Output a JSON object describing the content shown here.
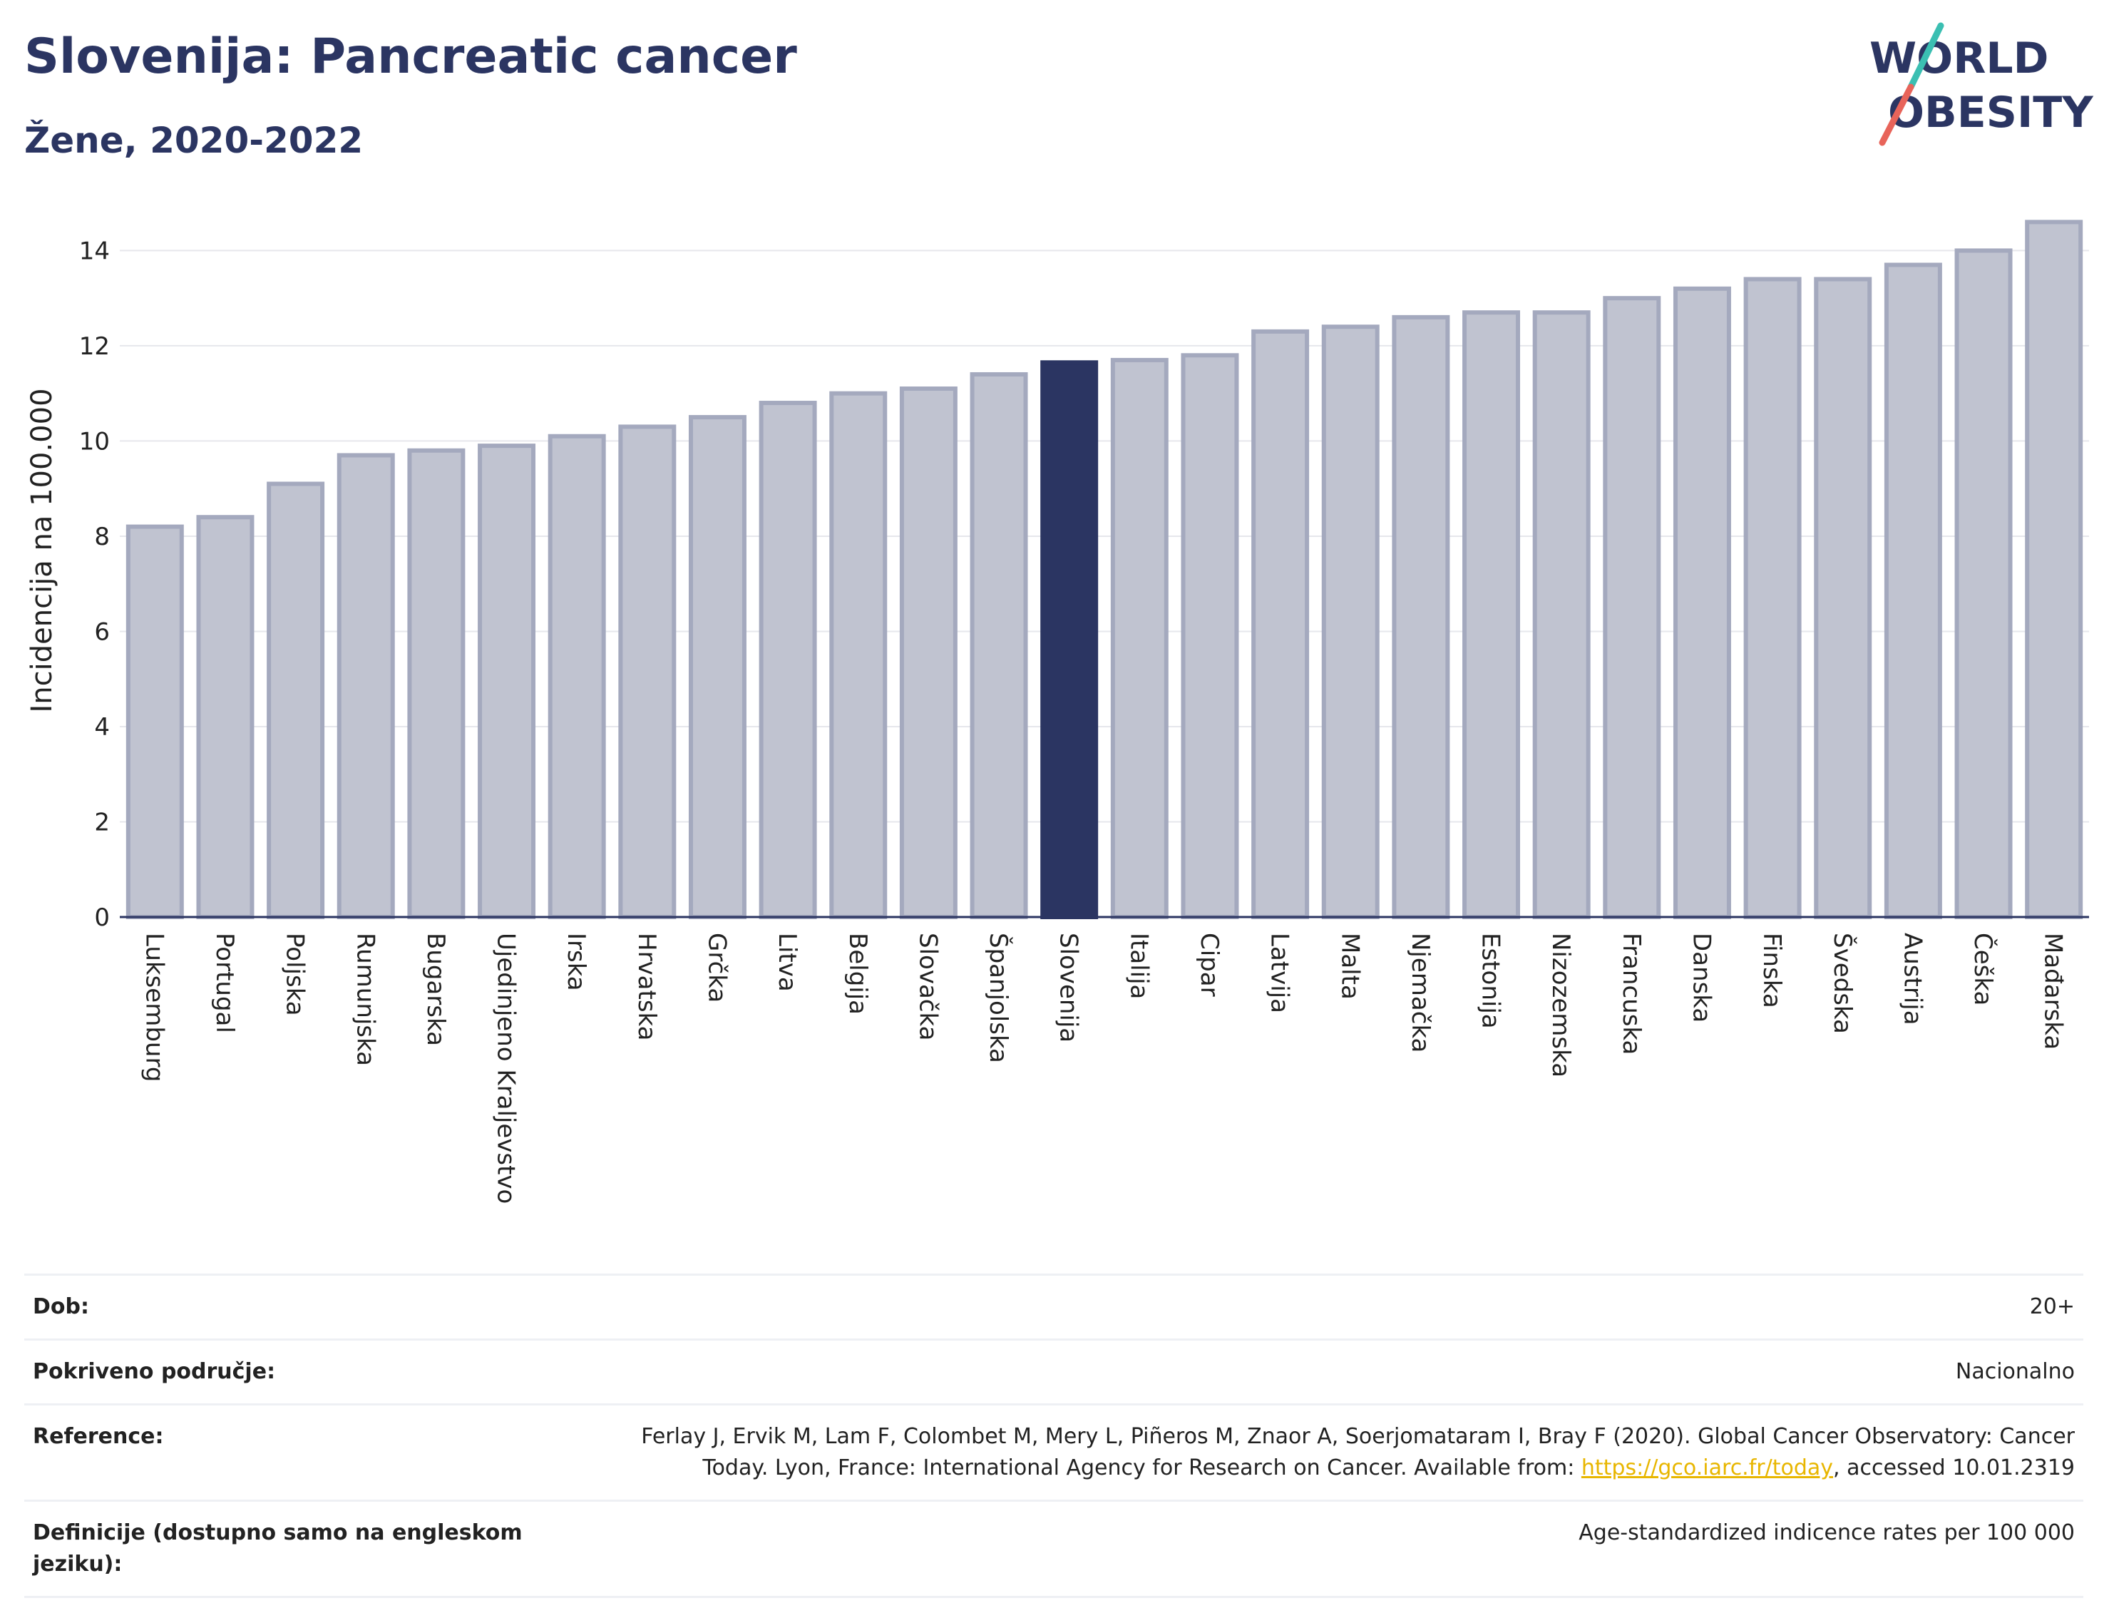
{
  "header": {
    "title": "Slovenija: Pancreatic cancer",
    "subtitle": "Žene, 2020-2022"
  },
  "logo": {
    "line1": "WORLD",
    "line2": "OBESITY",
    "colors": {
      "text": "#2b3562",
      "slash_top": "#3bbfb2",
      "slash_bottom": "#e8645a"
    }
  },
  "colors": {
    "bar": "#c0c3d0",
    "bar_border": "#a4a9be",
    "highlight": "#2b3562",
    "grid": "#e6e7ec",
    "axis": "#2b3562"
  },
  "chart_data": {
    "type": "bar",
    "title": "Slovenija: Pancreatic cancer",
    "subtitle": "Žene, 2020-2022",
    "xlabel": "",
    "ylabel": "Incidencija na 100.000",
    "ylim": [
      0,
      14.8
    ],
    "yticks": [
      0,
      2,
      4,
      6,
      8,
      10,
      12,
      14
    ],
    "grid": true,
    "highlight": "Slovenija",
    "categories": [
      "Luksemburg",
      "Portugal",
      "Poljska",
      "Rumunjska",
      "Bugarska",
      "Ujedinjeno Kraljevstvo",
      "Irska",
      "Hrvatska",
      "Grčka",
      "Litva",
      "Belgija",
      "Slovačka",
      "Španjolska",
      "Slovenija",
      "Italija",
      "Cipar",
      "Latvija",
      "Malta",
      "Njemačka",
      "Estonija",
      "Nizozemska",
      "Francuska",
      "Danska",
      "Finska",
      "Švedska",
      "Austrija",
      "Češka",
      "Mađarska"
    ],
    "values": [
      8.2,
      8.4,
      9.1,
      9.7,
      9.8,
      9.9,
      10.1,
      10.3,
      10.5,
      10.8,
      11.0,
      11.1,
      11.4,
      11.65,
      11.7,
      11.8,
      12.3,
      12.4,
      12.6,
      12.7,
      12.7,
      13.0,
      13.2,
      13.4,
      13.4,
      13.7,
      14.0,
      14.6
    ]
  },
  "info": {
    "rows": [
      {
        "label": "Dob:",
        "value": "20+"
      },
      {
        "label": "Pokriveno područje:",
        "value": "Nacionalno"
      },
      {
        "label": "Reference:",
        "value_pre": "Ferlay J, Ervik M, Lam F, Colombet M, Mery L, Piñeros M, Znaor A, Soerjomataram I, Bray F (2020). Global Cancer Observatory: Cancer Today. Lyon, France: International Agency for Research on Cancer. Available from: ",
        "link": "https://gco.iarc.fr/today",
        "value_post": ", accessed 10.01.2319"
      },
      {
        "label": "Definicije (dostupno samo na engleskom jeziku):",
        "value": "Age-standardized indicence rates per 100 000"
      }
    ]
  }
}
